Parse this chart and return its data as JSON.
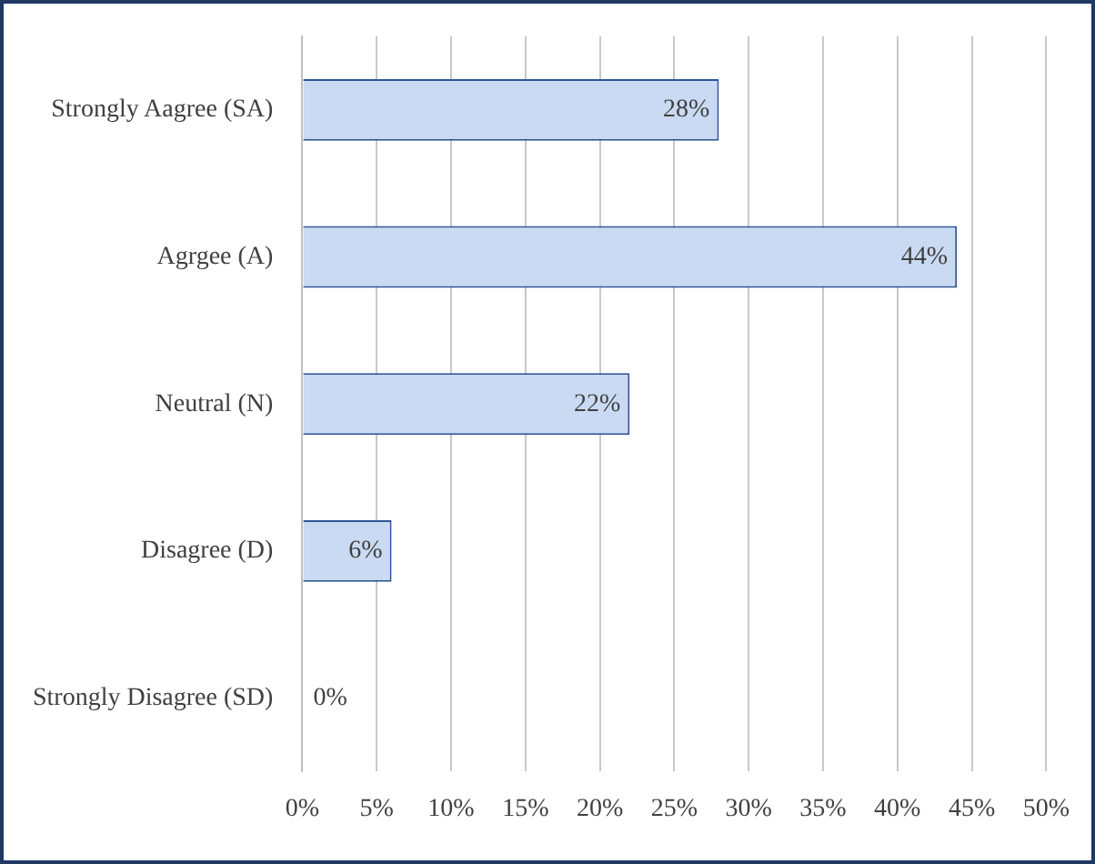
{
  "chart_data": {
    "type": "bar",
    "orientation": "horizontal",
    "categories": [
      "Strongly Aagree (SA)",
      "Agrgee (A)",
      "Neutral (N)",
      "Disagree (D)",
      "Strongly Disagree (SD)"
    ],
    "values": [
      28,
      44,
      22,
      6,
      0
    ],
    "value_labels": [
      "28%",
      "44%",
      "22%",
      "6%",
      "0%"
    ],
    "color": "#c9daf2",
    "xlim": [
      0,
      50
    ],
    "xticks": [
      {
        "value": 0,
        "label": "0%"
      },
      {
        "value": 5,
        "label": "5%"
      },
      {
        "value": 10,
        "label": "10%"
      },
      {
        "value": 15,
        "label": "15%"
      },
      {
        "value": 20,
        "label": "20%"
      },
      {
        "value": 25,
        "label": "25%"
      },
      {
        "value": 30,
        "label": "30%"
      },
      {
        "value": 35,
        "label": "35%"
      },
      {
        "value": 40,
        "label": "40%"
      },
      {
        "value": 45,
        "label": "45%"
      },
      {
        "value": 50,
        "label": "50%"
      }
    ],
    "grid": "x",
    "legend": false
  }
}
